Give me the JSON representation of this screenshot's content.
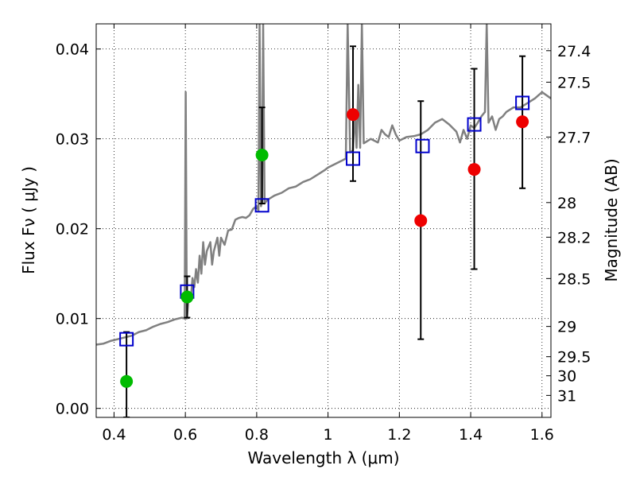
{
  "chart_data": {
    "type": "scatter",
    "xlabel": "Wavelength  λ (μm)",
    "ylabel": "Flux  Fν  ( μJy )",
    "y2label": "Magnitude (AB)",
    "xlim": [
      0.35,
      1.625
    ],
    "ylim": [
      -0.001,
      0.0428
    ],
    "x_ticks": [
      0.4,
      0.6,
      0.8,
      1.0,
      1.2,
      1.4,
      1.6
    ],
    "x_tick_labels": [
      "0.4",
      "0.6",
      "0.8",
      "1",
      "1.2",
      "1.4",
      "1.6"
    ],
    "y_ticks": [
      0.0,
      0.01,
      0.02,
      0.03,
      0.04
    ],
    "y_tick_labels": [
      "0.00",
      "0.01",
      "0.02",
      "0.03",
      "0.04"
    ],
    "mag_ticks": [
      27.4,
      27.5,
      27.7,
      28,
      28.2,
      28.5,
      29,
      29.5,
      30,
      31
    ],
    "mag_tick_labels": [
      "27.4",
      "27.5",
      "27.7",
      "28",
      "28.2",
      "28.5",
      "29",
      "29.5",
      "30",
      "31"
    ],
    "grid": true,
    "colors": {
      "spectrum": "#808080",
      "model_box": "#0000cc",
      "green_points": "#00bb00",
      "red_points": "#ee0000",
      "errorbar": "#000000"
    },
    "series": [
      {
        "kind": "line",
        "points": [
          [
            0.35,
            0.0071
          ],
          [
            0.37,
            0.0072
          ],
          [
            0.39,
            0.0075
          ],
          [
            0.41,
            0.0077
          ],
          [
            0.43,
            0.0079
          ],
          [
            0.45,
            0.0081
          ],
          [
            0.47,
            0.0085
          ],
          [
            0.49,
            0.0087
          ],
          [
            0.51,
            0.0091
          ],
          [
            0.53,
            0.0094
          ],
          [
            0.55,
            0.0096
          ],
          [
            0.57,
            0.0099
          ],
          [
            0.59,
            0.0101
          ],
          [
            0.598,
            0.01
          ],
          [
            0.601,
            0.0352
          ],
          [
            0.604,
            0.01
          ],
          [
            0.61,
            0.0125
          ],
          [
            0.615,
            0.012
          ],
          [
            0.62,
            0.0145
          ],
          [
            0.625,
            0.0135
          ],
          [
            0.63,
            0.0155
          ],
          [
            0.635,
            0.014
          ],
          [
            0.64,
            0.017
          ],
          [
            0.645,
            0.015
          ],
          [
            0.65,
            0.0185
          ],
          [
            0.655,
            0.016
          ],
          [
            0.66,
            0.0175
          ],
          [
            0.67,
            0.0185
          ],
          [
            0.675,
            0.016
          ],
          [
            0.68,
            0.0175
          ],
          [
            0.69,
            0.019
          ],
          [
            0.695,
            0.017
          ],
          [
            0.7,
            0.019
          ],
          [
            0.71,
            0.0182
          ],
          [
            0.72,
            0.0198
          ],
          [
            0.73,
            0.0199
          ],
          [
            0.74,
            0.021
          ],
          [
            0.75,
            0.0212
          ],
          [
            0.76,
            0.0213
          ],
          [
            0.77,
            0.0212
          ],
          [
            0.78,
            0.0215
          ],
          [
            0.79,
            0.0222
          ],
          [
            0.8,
            0.0225
          ],
          [
            0.805,
            0.022
          ],
          [
            0.808,
            0.0428
          ],
          [
            0.812,
            0.0225
          ],
          [
            0.815,
            0.023
          ],
          [
            0.818,
            0.0428
          ],
          [
            0.822,
            0.0228
          ],
          [
            0.83,
            0.0232
          ],
          [
            0.85,
            0.0237
          ],
          [
            0.87,
            0.024
          ],
          [
            0.89,
            0.0245
          ],
          [
            0.91,
            0.0247
          ],
          [
            0.93,
            0.0252
          ],
          [
            0.95,
            0.0255
          ],
          [
            0.97,
            0.026
          ],
          [
            0.99,
            0.0265
          ],
          [
            1.0,
            0.0268
          ],
          [
            1.02,
            0.0272
          ],
          [
            1.04,
            0.0276
          ],
          [
            1.05,
            0.0278
          ],
          [
            1.055,
            0.0428
          ],
          [
            1.062,
            0.0285
          ],
          [
            1.07,
            0.0287
          ],
          [
            1.075,
            0.033
          ],
          [
            1.08,
            0.029
          ],
          [
            1.085,
            0.036
          ],
          [
            1.09,
            0.029
          ],
          [
            1.095,
            0.0428
          ],
          [
            1.1,
            0.0295
          ],
          [
            1.12,
            0.03
          ],
          [
            1.14,
            0.0296
          ],
          [
            1.15,
            0.031
          ],
          [
            1.16,
            0.0305
          ],
          [
            1.17,
            0.0302
          ],
          [
            1.18,
            0.0315
          ],
          [
            1.19,
            0.0305
          ],
          [
            1.2,
            0.0298
          ],
          [
            1.22,
            0.0302
          ],
          [
            1.24,
            0.0303
          ],
          [
            1.26,
            0.0305
          ],
          [
            1.28,
            0.031
          ],
          [
            1.3,
            0.0318
          ],
          [
            1.32,
            0.0322
          ],
          [
            1.34,
            0.0316
          ],
          [
            1.36,
            0.0308
          ],
          [
            1.37,
            0.0296
          ],
          [
            1.38,
            0.031
          ],
          [
            1.39,
            0.03
          ],
          [
            1.4,
            0.0315
          ],
          [
            1.41,
            0.0312
          ],
          [
            1.42,
            0.0318
          ],
          [
            1.43,
            0.0325
          ],
          [
            1.44,
            0.033
          ],
          [
            1.445,
            0.0428
          ],
          [
            1.45,
            0.0318
          ],
          [
            1.46,
            0.0325
          ],
          [
            1.47,
            0.031
          ],
          [
            1.48,
            0.0322
          ],
          [
            1.49,
            0.0325
          ],
          [
            1.5,
            0.033
          ],
          [
            1.52,
            0.0335
          ],
          [
            1.54,
            0.0335
          ],
          [
            1.56,
            0.034
          ],
          [
            1.58,
            0.0345
          ],
          [
            1.6,
            0.0352
          ],
          [
            1.625,
            0.0345
          ]
        ]
      },
      {
        "kind": "squares",
        "points": [
          [
            0.435,
            0.0077
          ],
          [
            0.605,
            0.013
          ],
          [
            0.815,
            0.0226
          ],
          [
            1.07,
            0.0278
          ],
          [
            1.265,
            0.0292
          ],
          [
            1.41,
            0.0316
          ],
          [
            1.545,
            0.034
          ]
        ]
      },
      {
        "kind": "dots-green",
        "points": [
          [
            0.435,
            0.003
          ],
          [
            0.605,
            0.0124
          ],
          [
            0.815,
            0.0282
          ]
        ]
      },
      {
        "kind": "dots-red",
        "points": [
          [
            1.07,
            0.0327
          ],
          [
            1.26,
            0.0209
          ],
          [
            1.41,
            0.0266
          ],
          [
            1.545,
            0.0319
          ]
        ]
      },
      {
        "kind": "errorbars",
        "bars": [
          {
            "x": 0.435,
            "low": -0.001,
            "high": 0.0085
          },
          {
            "x": 0.605,
            "low": 0.0101,
            "high": 0.0147
          },
          {
            "x": 0.815,
            "low": 0.0228,
            "high": 0.0335
          },
          {
            "x": 1.07,
            "low": 0.0253,
            "high": 0.0403
          },
          {
            "x": 1.26,
            "low": 0.0077,
            "high": 0.0342
          },
          {
            "x": 1.41,
            "low": 0.0155,
            "high": 0.0378
          },
          {
            "x": 1.545,
            "low": 0.0245,
            "high": 0.0392
          }
        ]
      }
    ]
  }
}
